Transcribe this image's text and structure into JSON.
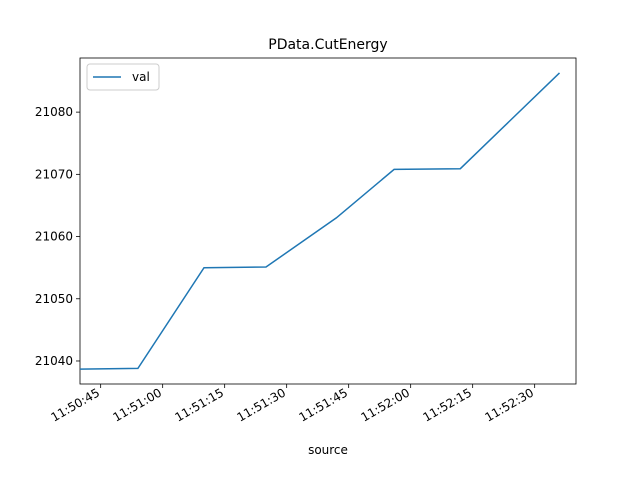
{
  "chart_data": {
    "type": "line",
    "title": "PData.CutEnergy",
    "xlabel": "source",
    "ylabel": "",
    "x_tick_labels": [
      "11:50:45",
      "11:51:00",
      "11:51:15",
      "11:51:30",
      "11:51:45",
      "11:52:00",
      "11:52:15",
      "11:52:30"
    ],
    "y_ticks": [
      21040,
      21050,
      21060,
      21070,
      21080
    ],
    "ylim": [
      21036.3,
      21088.7
    ],
    "xlim": [
      "11:50:40",
      "11:52:40"
    ],
    "grid": false,
    "legend_position": "top-left",
    "series": [
      {
        "name": "val",
        "color": "#1f77b4",
        "x": [
          "11:50:40",
          "11:50:54",
          "11:51:10",
          "11:51:25",
          "11:51:42",
          "11:51:56",
          "11:52:12",
          "11:52:36"
        ],
        "y": [
          21038.7,
          21038.8,
          21055.0,
          21055.1,
          21063.0,
          21070.8,
          21070.9,
          21086.3
        ]
      }
    ]
  }
}
